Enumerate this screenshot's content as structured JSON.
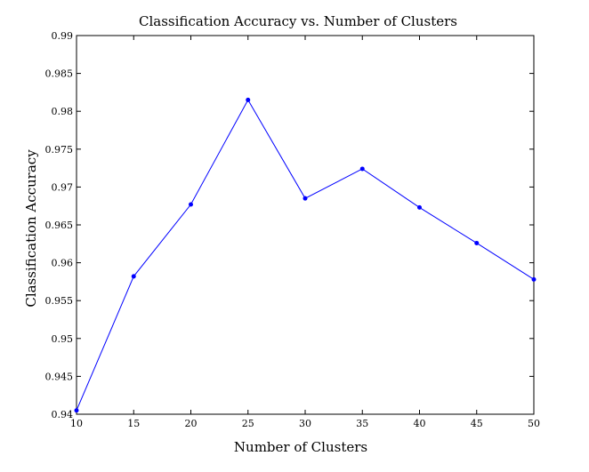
{
  "chart_data": {
    "type": "line",
    "title": "Classification Accuracy vs. Number of Clusters",
    "xlabel": "Number of Clusters",
    "ylabel": "Classification Accuracy",
    "xlim": [
      10,
      50
    ],
    "ylim": [
      0.94,
      0.99
    ],
    "x_ticks": [
      10,
      15,
      20,
      25,
      30,
      35,
      40,
      45,
      50
    ],
    "y_ticks": [
      0.94,
      0.945,
      0.95,
      0.955,
      0.96,
      0.965,
      0.97,
      0.975,
      0.98,
      0.985,
      0.99
    ],
    "x_tick_labels": [
      "10",
      "15",
      "20",
      "25",
      "30",
      "35",
      "40",
      "45",
      "50"
    ],
    "y_tick_labels": [
      "0.94",
      "0.945",
      "0.95",
      "0.955",
      "0.96",
      "0.965",
      "0.97",
      "0.975",
      "0.98",
      "0.985",
      "0.99"
    ],
    "grid": false,
    "series": [
      {
        "x": [
          10,
          15,
          20,
          25,
          30,
          35,
          40,
          45,
          50
        ],
        "values": [
          0.9405,
          0.9582,
          0.9677,
          0.9815,
          0.9685,
          0.9724,
          0.9673,
          0.9626,
          0.9578
        ],
        "color": "#0000ff",
        "marker": "point"
      }
    ]
  }
}
